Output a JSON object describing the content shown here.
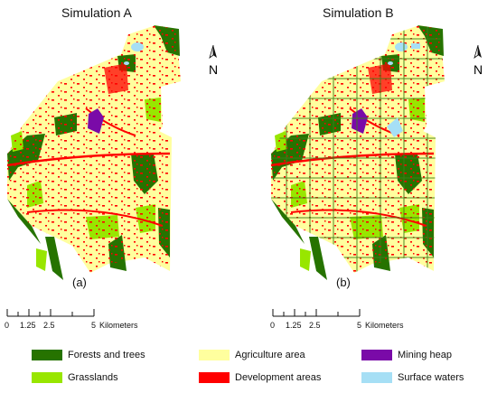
{
  "panels": [
    {
      "title": "Simulation A",
      "label": "(a)"
    },
    {
      "title": "Simulation B",
      "label": "(b)"
    }
  ],
  "north_symbol": "N",
  "scale_bar": {
    "ticks": [
      "0",
      "1.25",
      "2.5",
      "5"
    ],
    "unit": "Kilometers"
  },
  "legend": [
    {
      "label": "Forests and trees",
      "color": "#267300"
    },
    {
      "label": "Agriculture area",
      "color": "#ffff9e"
    },
    {
      "label": "Mining heap",
      "color": "#7a0aa8"
    },
    {
      "label": "Grasslands",
      "color": "#98e600"
    },
    {
      "label": "Development areas",
      "color": "#ff0000"
    },
    {
      "label": "Surface waters",
      "color": "#a6dff5"
    }
  ]
}
